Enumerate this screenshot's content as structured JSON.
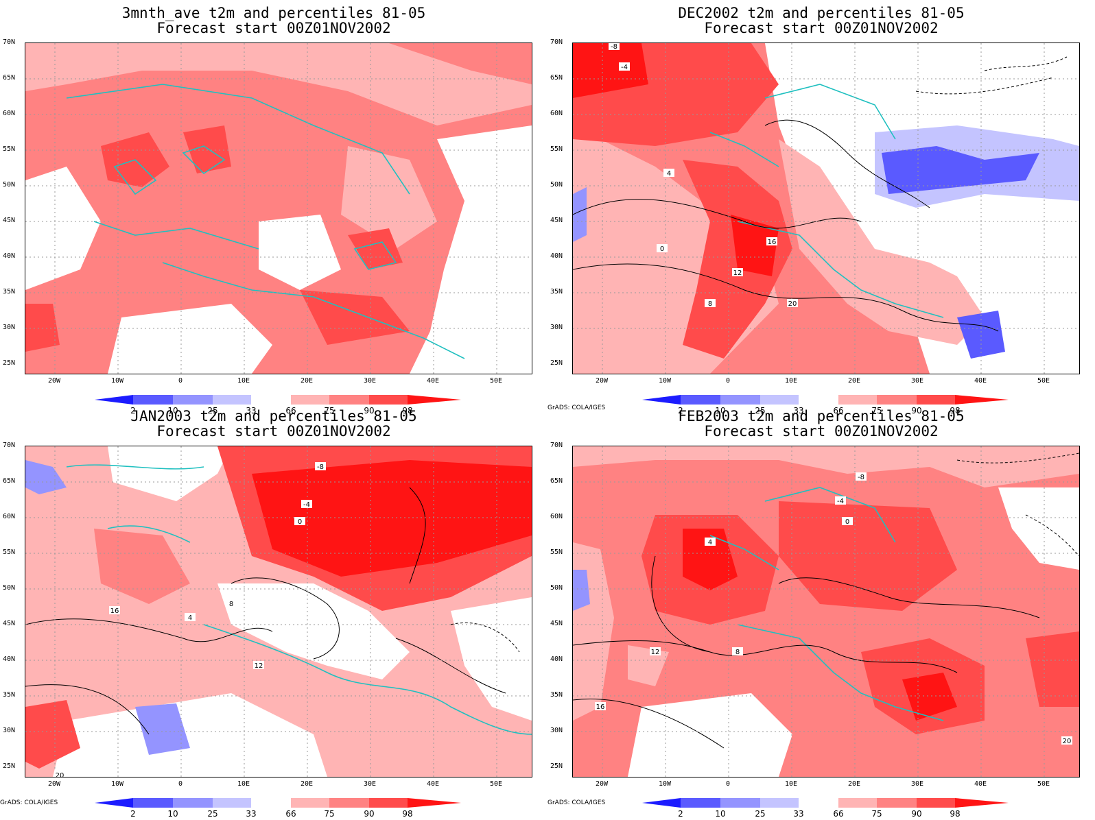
{
  "colors": {
    "blue_2": "#1c1cff",
    "blue_10": "#5a5aff",
    "blue_25": "#9494ff",
    "blue_33": "#c4c4ff",
    "red_66": "#ffb4b4",
    "red_75": "#ff8282",
    "red_90": "#ff4b4b",
    "red_98": "#ff1414",
    "coast": "#20c0c0",
    "contour": "#000000"
  },
  "lat_labels": [
    "70N",
    "65N",
    "60N",
    "55N",
    "50N",
    "45N",
    "40N",
    "35N",
    "30N",
    "25N"
  ],
  "lon_labels": [
    "20W",
    "10W",
    "0",
    "10E",
    "20E",
    "30E",
    "40E",
    "50E"
  ],
  "colorbar_labels": [
    "2",
    "10",
    "25",
    "33",
    "66",
    "75",
    "90",
    "98"
  ],
  "grads_credit": "GrADS: COLA/IGES",
  "panels": [
    {
      "title": "3mnth_ave t2m and percentiles 81-05",
      "subtitle": "Forecast start 00Z01NOV2002",
      "show_credit": false,
      "contour_labels": []
    },
    {
      "title": "DEC2002 t2m and percentiles 81-05",
      "subtitle": "Forecast start 00Z01NOV2002",
      "show_credit": true,
      "contour_labels": [
        "-8",
        "-4",
        "0",
        "4",
        "8",
        "12",
        "16",
        "20"
      ]
    },
    {
      "title": "JAN2003 t2m and percentiles 81-05",
      "subtitle": "Forecast start 00Z01NOV2002",
      "show_credit": true,
      "contour_labels": [
        "-8",
        "-4",
        "0",
        "4",
        "8",
        "12",
        "16",
        "20"
      ]
    },
    {
      "title": "FEB2003 t2m and percentiles 81-05",
      "subtitle": "Forecast start 00Z01NOV2002",
      "show_credit": true,
      "contour_labels": [
        "-8",
        "-4",
        "0",
        "4",
        "8",
        "12",
        "16",
        "20"
      ]
    }
  ]
}
